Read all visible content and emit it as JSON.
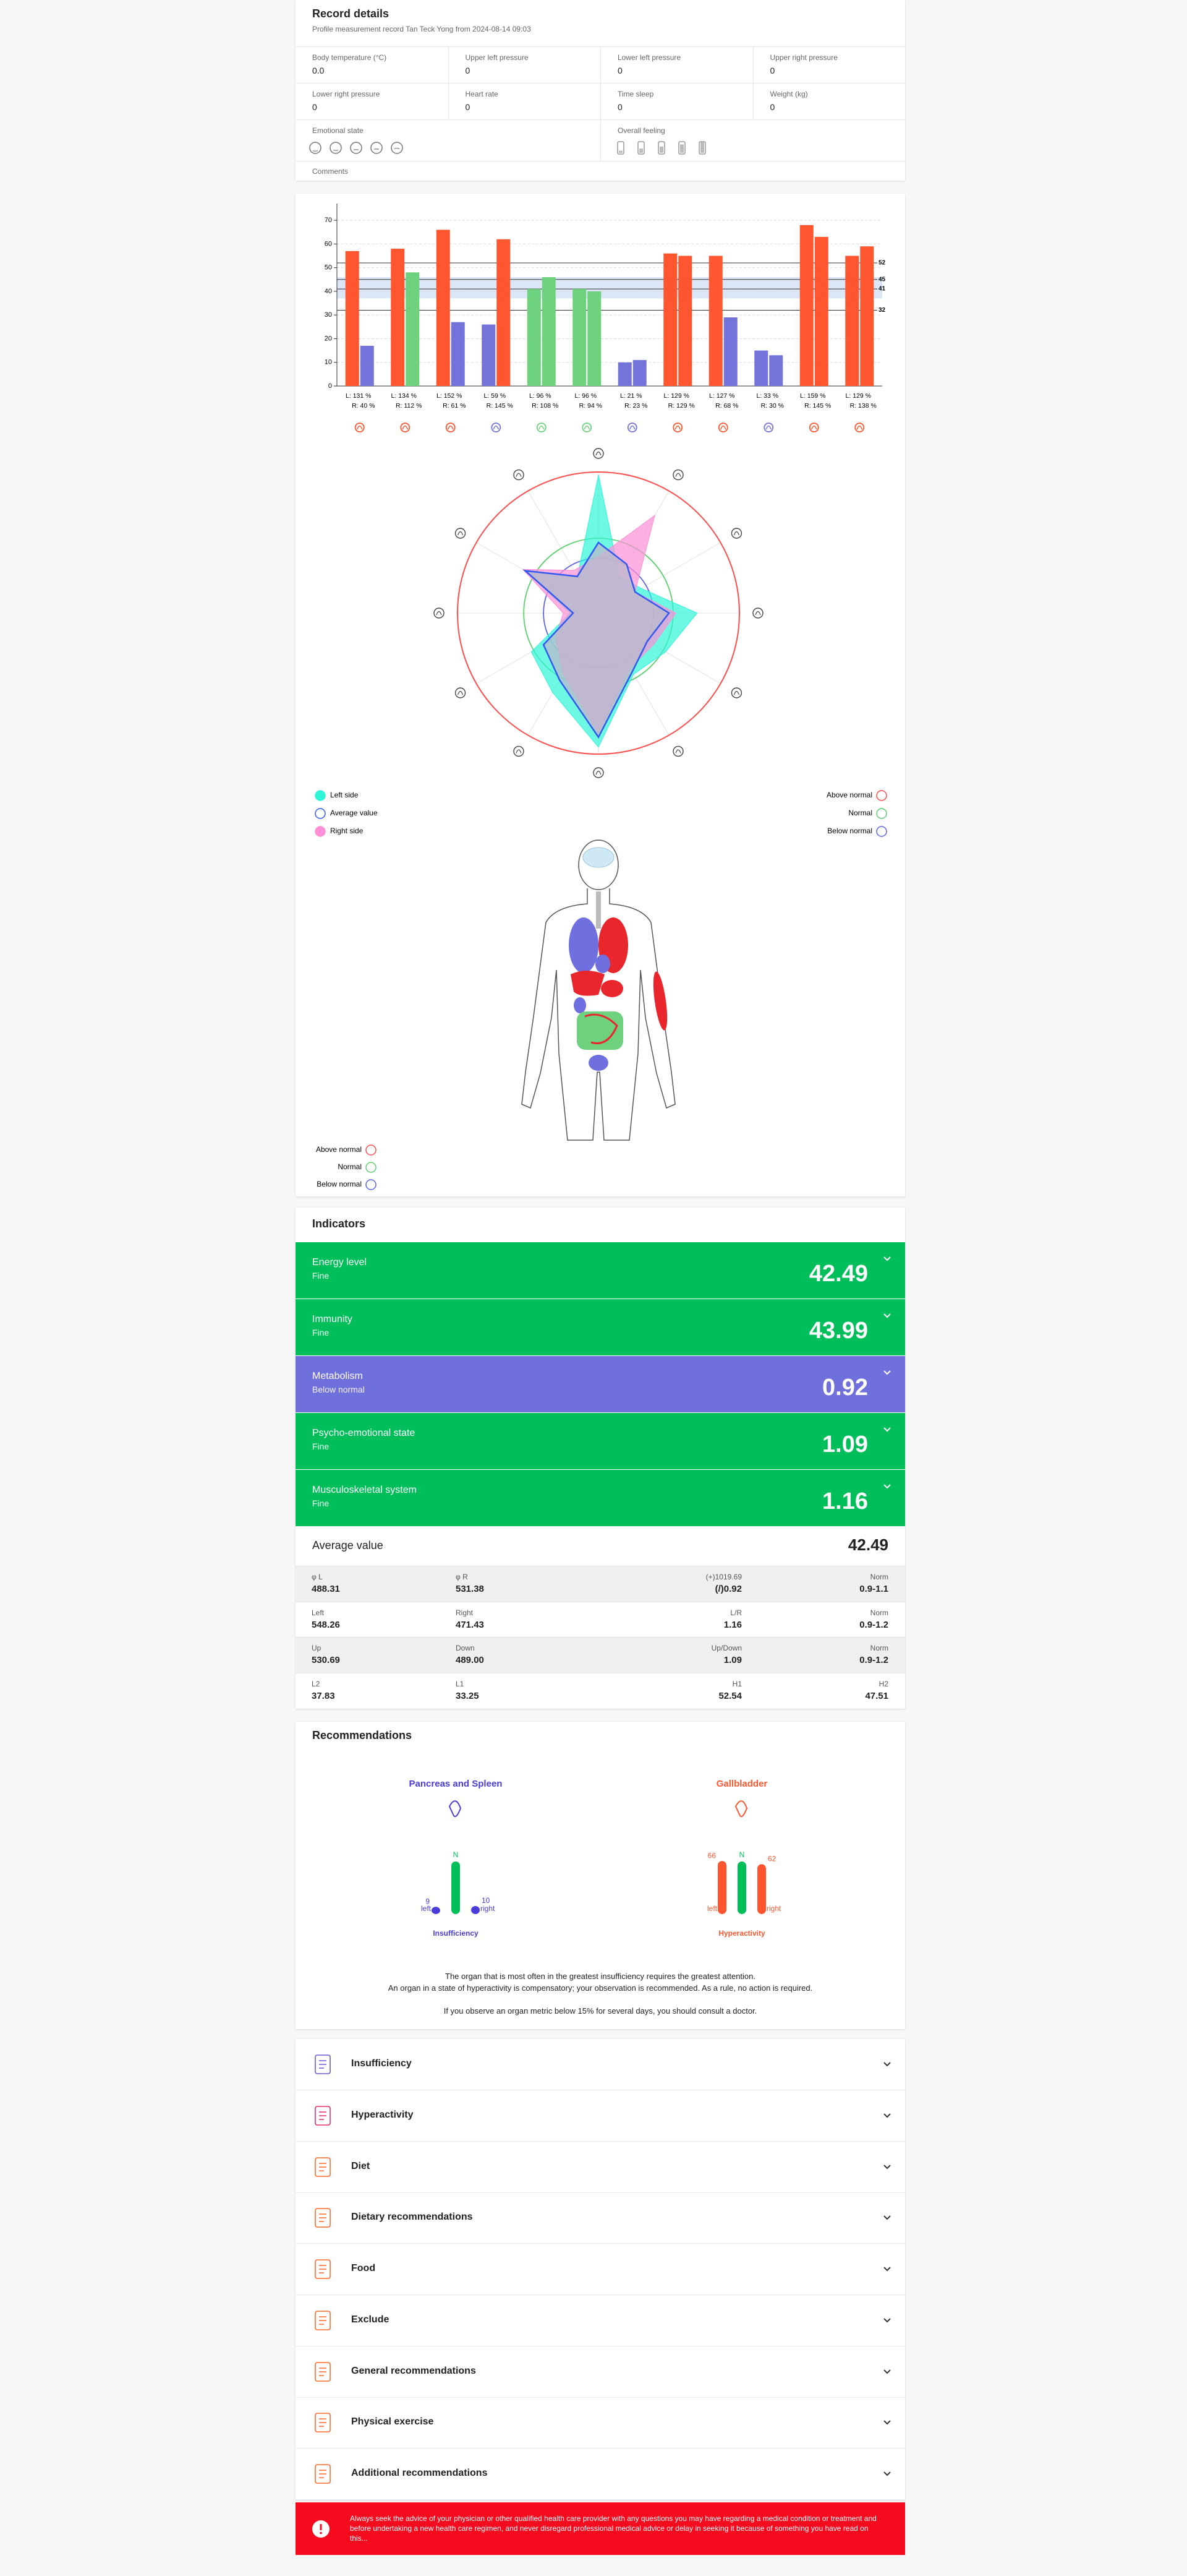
{
  "record": {
    "title": "Record details",
    "subtitle": "Profile measurement record Tan Teck Yong from 2024-08-14 09:03",
    "fields": [
      {
        "label": "Body temperature (°C)",
        "value": "0.0"
      },
      {
        "label": "Upper left pressure",
        "value": "0"
      },
      {
        "label": "Lower left pressure",
        "value": "0"
      },
      {
        "label": "Upper right pressure",
        "value": "0"
      },
      {
        "label": "Lower right pressure",
        "value": "0"
      },
      {
        "label": "Heart rate",
        "value": "0"
      },
      {
        "label": "Time sleep",
        "value": "0"
      },
      {
        "label": "Weight (kg)",
        "value": "0"
      }
    ],
    "emotional_state": "Emotional state",
    "overall_feeling": "Overall feeling",
    "comments": "Comments"
  },
  "bar_chart": {
    "type": "bar",
    "ylim": [
      0,
      75
    ],
    "yticks": [
      0,
      10,
      20,
      30,
      40,
      50,
      60,
      70
    ],
    "reference_lines": [
      52,
      45,
      41,
      32
    ],
    "band": [
      37,
      46
    ],
    "band_color": "#dbe6f7",
    "left_labels": [
      "L: 131 %",
      "L: 134 %",
      "L: 152 %",
      "L: 59 %",
      "L: 96 %",
      "L: 96 %",
      "L: 21 %",
      "L: 129 %",
      "L: 127 %",
      "L: 33 %",
      "L: 159 %",
      "L: 129 %"
    ],
    "right_labels": [
      "R: 40 %",
      "R: 112 %",
      "R: 61 %",
      "R: 145 %",
      "R: 108 %",
      "R: 94 %",
      "R: 23 %",
      "R: 129 %",
      "R: 68 %",
      "R: 30 %",
      "R: 145 %",
      "R: 138 %"
    ],
    "series": [
      {
        "values": [
          57,
          58,
          66,
          26,
          41,
          41,
          10,
          56,
          55,
          15,
          68,
          55
        ],
        "colors": [
          "#ff5630",
          "#ff5630",
          "#ff5630",
          "#7373d9",
          "#6dd17e",
          "#6dd17e",
          "#7373d9",
          "#ff5630",
          "#ff5630",
          "#7373d9",
          "#ff5630",
          "#ff5630"
        ]
      },
      {
        "values": [
          17,
          48,
          27,
          62,
          46,
          40,
          11,
          55,
          29,
          13,
          63,
          59
        ],
        "colors": [
          "#7373d9",
          "#6dd17e",
          "#7373d9",
          "#ff5630",
          "#6dd17e",
          "#6dd17e",
          "#7373d9",
          "#ff5630",
          "#7373d9",
          "#7373d9",
          "#ff5630",
          "#ff5630"
        ]
      }
    ]
  },
  "radar": {
    "type": "radar",
    "rlim": [
      0,
      100
    ],
    "rings": [
      {
        "name": "Above normal",
        "value": 100,
        "color": "#ff4d4d"
      },
      {
        "name": "Normal",
        "value": 53,
        "color": "#5ccf6e"
      },
      {
        "name": "Below normal",
        "value": 39,
        "color": "#5a63e0"
      }
    ],
    "series": [
      {
        "name": "Left side",
        "color": "#2ff5d9",
        "values": [
          98,
          30,
          35,
          70,
          55,
          50,
          95,
          65,
          55,
          20,
          60,
          30
        ]
      },
      {
        "name": "Average value",
        "color": "#3158f0",
        "values": [
          50,
          40,
          30,
          50,
          40,
          48,
          88,
          55,
          45,
          18,
          60,
          30
        ]
      },
      {
        "name": "Right side",
        "color": "#ff8fd6",
        "values": [
          40,
          80,
          30,
          55,
          45,
          45,
          85,
          50,
          35,
          25,
          62,
          35
        ]
      }
    ]
  },
  "body_legend": [
    "Above normal",
    "Normal",
    "Below normal"
  ],
  "indicators": {
    "title": "Indicators",
    "items": [
      {
        "name": "Energy level",
        "status": "Fine",
        "value": 42.49,
        "color": "#00bf5a"
      },
      {
        "name": "Immunity",
        "status": "Fine",
        "value": 43.99,
        "color": "#00bf5a"
      },
      {
        "name": "Metabolism",
        "status": "Below normal",
        "value": 0.92,
        "color": "#7070dc"
      },
      {
        "name": "Psycho-emotional state",
        "status": "Fine",
        "value": 1.09,
        "color": "#00bf5a"
      },
      {
        "name": "Musculoskeletal system",
        "status": "Fine",
        "value": 1.16,
        "color": "#00bf5a"
      }
    ],
    "average_label": "Average value",
    "average": 42.49,
    "table": [
      [
        {
          "label": "φ L",
          "value": "488.31"
        },
        {
          "label": "φ R",
          "value": "531.38"
        },
        {
          "label": "(+)1019.69",
          "value": "(/)0.92"
        },
        {
          "label": "Norm",
          "value": "0.9-1.1"
        }
      ],
      [
        {
          "label": "Left",
          "value": "548.26"
        },
        {
          "label": "Right",
          "value": "471.43"
        },
        {
          "label": "L/R",
          "value": "1.16"
        },
        {
          "label": "Norm",
          "value": "0.9-1.2"
        }
      ],
      [
        {
          "label": "Up",
          "value": "530.69"
        },
        {
          "label": "Down",
          "value": "489.00"
        },
        {
          "label": "Up/Down",
          "value": "1.09"
        },
        {
          "label": "Norm",
          "value": "0.9-1.2"
        }
      ],
      [
        {
          "label": "L2",
          "value": "37.83"
        },
        {
          "label": "L1",
          "value": "33.25"
        },
        {
          "label": "H1",
          "value": "52.54"
        },
        {
          "label": "H2",
          "value": "47.51"
        }
      ]
    ]
  },
  "recommendations": {
    "title": "Recommendations",
    "organs": [
      {
        "name": "Pancreas and Spleen",
        "color": "#4a3cd8",
        "left": 9,
        "right": 10,
        "normal_label": "N",
        "left_label": "left",
        "right_label": "right",
        "state": "Insufficiency"
      },
      {
        "name": "Gallbladder",
        "color": "#ff5630",
        "left": 66,
        "right": 62,
        "normal_label": "N",
        "left_label": "left",
        "right_label": "right",
        "state": "Hyperactivity"
      }
    ],
    "normal_color": "#00bf5a",
    "notes": [
      "The organ that is most often in the greatest insufficiency requires the greatest attention.",
      "An organ in a state of hyperactivity is compensatory; your observation is recommended. As a rule, no action is required.",
      "If you observe an organ metric below 15% for several days, you should consult a doctor."
    ]
  },
  "accordion": [
    "Insufficiency",
    "Hyperactivity",
    "Diet",
    "Dietary recommendations",
    "Food",
    "Exclude",
    "General recommendations",
    "Physical exercise",
    "Additional recommendations"
  ],
  "warning": "Always seek the advice of your physician or other qualified health care provider with any questions you may have regarding a medical condition or treatment and before undertaking a new health care regimen, and never disregard professional medical advice or delay in seeking it because of something you have read on this..."
}
